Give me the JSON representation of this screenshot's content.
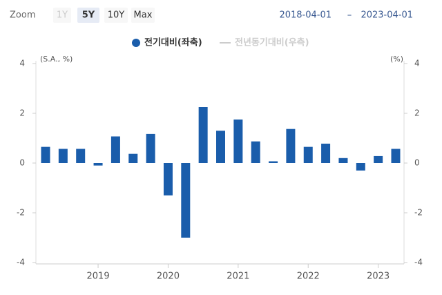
{
  "zoom": {
    "label": "Zoom",
    "buttons": [
      "1Y",
      "5Y",
      "10Y",
      "Max"
    ],
    "selected": "5Y",
    "disabled": "1Y"
  },
  "range": {
    "from": "2018-04-01",
    "separator": "–",
    "to": "2023-04-01"
  },
  "chart_data": {
    "type": "bar",
    "y_label": "(S.A., %)",
    "y2_label": "(%)",
    "categories": [
      null,
      null,
      null,
      "2019",
      null,
      null,
      null,
      "2020",
      null,
      null,
      null,
      "2021",
      null,
      null,
      null,
      "2022",
      null,
      null,
      null,
      "2023",
      null
    ],
    "series": [
      {
        "name": "전기대비(좌축)",
        "color": "#1a5dab",
        "values": [
          0.65,
          0.57,
          0.57,
          -0.1,
          1.07,
          0.37,
          1.17,
          -1.3,
          -3.0,
          2.25,
          1.3,
          1.75,
          0.87,
          0.07,
          1.37,
          0.65,
          0.78,
          0.2,
          -0.3,
          0.28,
          0.57
        ]
      },
      {
        "name": "전년동기대비(우측)",
        "color": "#cccccc",
        "visible": false,
        "axis": "y2"
      }
    ],
    "ylim": [
      -4,
      4
    ],
    "yticks": [
      -4,
      -2,
      0,
      2,
      4
    ],
    "y2lim": [
      -4,
      4
    ],
    "y2ticks": [
      -4,
      -2,
      0,
      2,
      4
    ]
  }
}
